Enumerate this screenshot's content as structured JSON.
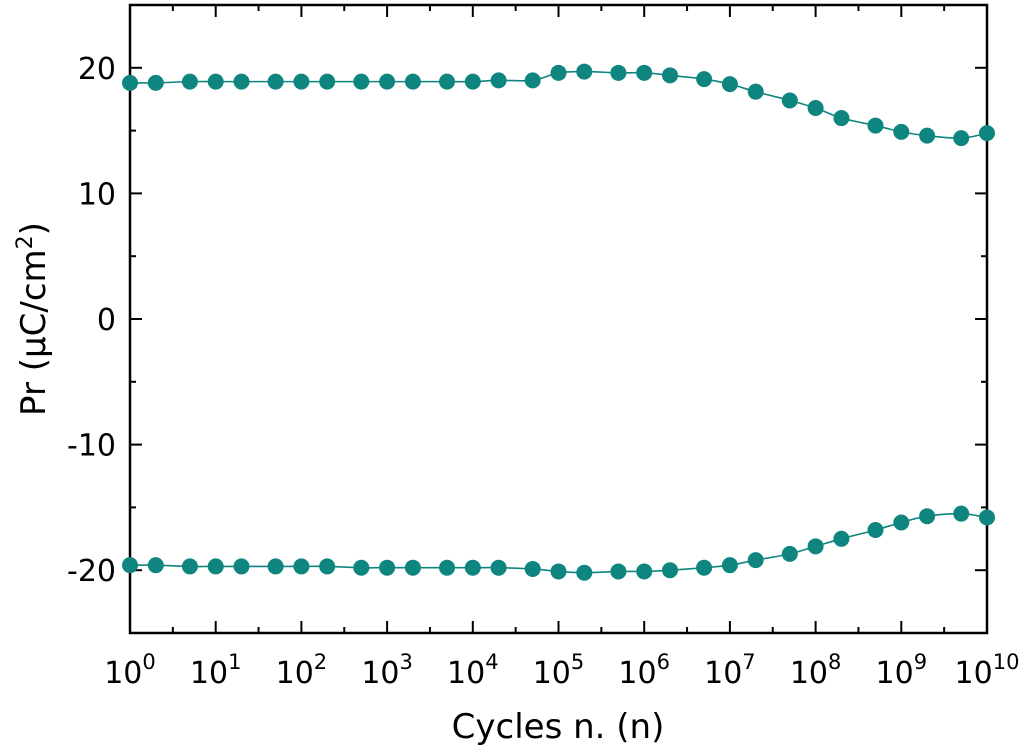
{
  "chart_data": {
    "type": "scatter",
    "xscale": "log",
    "xlabel": "Cycles n. (n)",
    "ylabel": "Pr (μC/cm²)",
    "ylabel_parts": {
      "main": "Pr (μC/cm",
      "sup": "2",
      "end": ")"
    },
    "xlim": [
      1,
      10000000000
    ],
    "ylim": [
      -25,
      25
    ],
    "grid": false,
    "x_tick_labels": [
      {
        "base": "10",
        "exp": "0"
      },
      {
        "base": "10",
        "exp": "1"
      },
      {
        "base": "10",
        "exp": "2"
      },
      {
        "base": "10",
        "exp": "3"
      },
      {
        "base": "10",
        "exp": "4"
      },
      {
        "base": "10",
        "exp": "5"
      },
      {
        "base": "10",
        "exp": "6"
      },
      {
        "base": "10",
        "exp": "7"
      },
      {
        "base": "10",
        "exp": "8"
      },
      {
        "base": "10",
        "exp": "9"
      },
      {
        "base": "10",
        "exp": "10"
      }
    ],
    "y_tick_labels": [
      "20",
      "10",
      "0",
      "-10",
      "-20"
    ],
    "y_ticks": [
      20,
      10,
      0,
      -10,
      -20
    ],
    "x": [
      1,
      2,
      5,
      10,
      20,
      50,
      100,
      200,
      500,
      1000,
      2000,
      5000,
      10000,
      20000,
      50000,
      100000,
      200000,
      500000,
      1000000,
      2000000,
      5000000,
      10000000,
      20000000,
      50000000,
      100000000,
      200000000,
      500000000,
      1000000000,
      2000000000,
      5000000000,
      10000000000
    ],
    "series": [
      {
        "color": "#0f8580",
        "values": [
          18.8,
          18.8,
          18.9,
          18.9,
          18.9,
          18.9,
          18.9,
          18.9,
          18.9,
          18.9,
          18.9,
          18.9,
          18.9,
          19.0,
          19.0,
          19.6,
          19.7,
          19.6,
          19.6,
          19.4,
          19.1,
          18.7,
          18.1,
          17.4,
          16.8,
          16.0,
          15.4,
          14.9,
          14.6,
          14.4,
          14.8
        ]
      },
      {
        "color": "#0f8580",
        "values": [
          -19.6,
          -19.6,
          -19.7,
          -19.7,
          -19.7,
          -19.7,
          -19.7,
          -19.7,
          -19.8,
          -19.8,
          -19.8,
          -19.8,
          -19.8,
          -19.8,
          -19.9,
          -20.1,
          -20.2,
          -20.1,
          -20.1,
          -20.0,
          -19.8,
          -19.6,
          -19.2,
          -18.7,
          -18.1,
          -17.5,
          -16.8,
          -16.2,
          -15.7,
          -15.5,
          -15.8
        ]
      }
    ]
  }
}
